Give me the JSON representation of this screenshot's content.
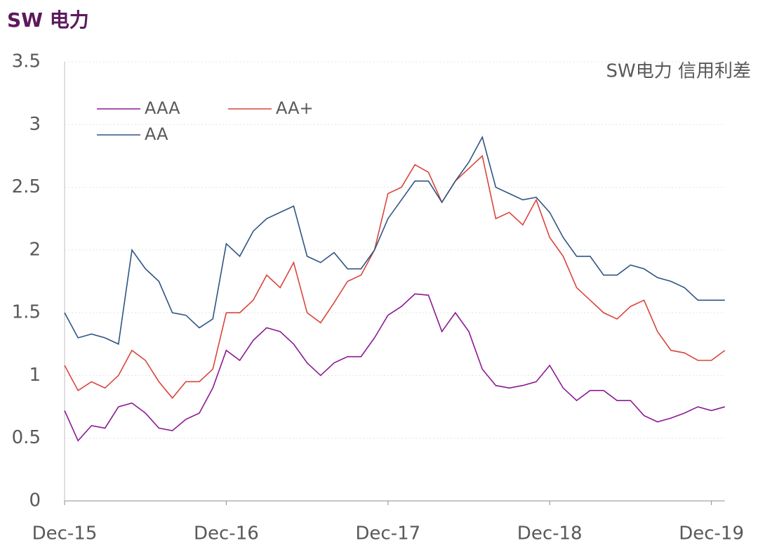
{
  "chart_data": {
    "type": "line",
    "title": "SW 电力",
    "annotation": "SW电力 信用利差",
    "categories": [
      "Dec-15",
      null,
      null,
      null,
      null,
      null,
      null,
      null,
      null,
      null,
      null,
      null,
      "Dec-16",
      null,
      null,
      null,
      null,
      null,
      null,
      null,
      null,
      null,
      null,
      null,
      "Dec-17",
      null,
      null,
      null,
      null,
      null,
      null,
      null,
      null,
      null,
      null,
      null,
      "Dec-18",
      null,
      null,
      null,
      null,
      null,
      null,
      null,
      null,
      null,
      null,
      null,
      "Dec-19",
      null
    ],
    "series": [
      {
        "name": "AAA",
        "color": "#8b1a93",
        "values": [
          0.72,
          0.48,
          0.6,
          0.58,
          0.75,
          0.78,
          0.7,
          0.58,
          0.56,
          0.65,
          0.7,
          0.9,
          1.2,
          1.12,
          1.28,
          1.38,
          1.35,
          1.25,
          1.1,
          1.0,
          1.1,
          1.15,
          1.15,
          1.3,
          1.48,
          1.55,
          1.65,
          1.64,
          1.35,
          1.5,
          1.35,
          1.05,
          0.92,
          0.9,
          0.92,
          0.95,
          1.08,
          0.9,
          0.8,
          0.88,
          0.88,
          0.8,
          0.8,
          0.68,
          0.63,
          0.66,
          0.7,
          0.75,
          0.72,
          0.75
        ]
      },
      {
        "name": "AA+",
        "color": "#d9453d",
        "values": [
          1.08,
          0.88,
          0.95,
          0.9,
          1.0,
          1.2,
          1.12,
          0.95,
          0.82,
          0.95,
          0.95,
          1.05,
          1.5,
          1.5,
          1.6,
          1.8,
          1.7,
          1.9,
          1.5,
          1.42,
          1.58,
          1.75,
          1.8,
          2.0,
          2.45,
          2.5,
          2.68,
          2.62,
          2.38,
          2.55,
          2.65,
          2.75,
          2.25,
          2.3,
          2.2,
          2.4,
          2.1,
          1.95,
          1.7,
          1.6,
          1.5,
          1.45,
          1.55,
          1.6,
          1.35,
          1.2,
          1.18,
          1.12,
          1.12,
          1.2
        ]
      },
      {
        "name": "AA",
        "color": "#2e5583",
        "values": [
          1.5,
          1.3,
          1.33,
          1.3,
          1.25,
          2.0,
          1.85,
          1.75,
          1.5,
          1.48,
          1.38,
          1.45,
          2.05,
          1.95,
          2.15,
          2.25,
          2.3,
          2.35,
          1.95,
          1.9,
          1.98,
          1.85,
          1.85,
          2.0,
          2.25,
          2.4,
          2.55,
          2.55,
          2.38,
          2.55,
          2.7,
          2.9,
          2.5,
          2.45,
          2.4,
          2.42,
          2.3,
          2.1,
          1.95,
          1.95,
          1.8,
          1.8,
          1.88,
          1.85,
          1.78,
          1.75,
          1.7,
          1.6,
          1.6,
          1.6
        ]
      }
    ],
    "ylim": [
      0,
      3.5
    ],
    "yticks": [
      0,
      0.5,
      1,
      1.5,
      2,
      2.5,
      3,
      3.5
    ],
    "grid": true
  }
}
